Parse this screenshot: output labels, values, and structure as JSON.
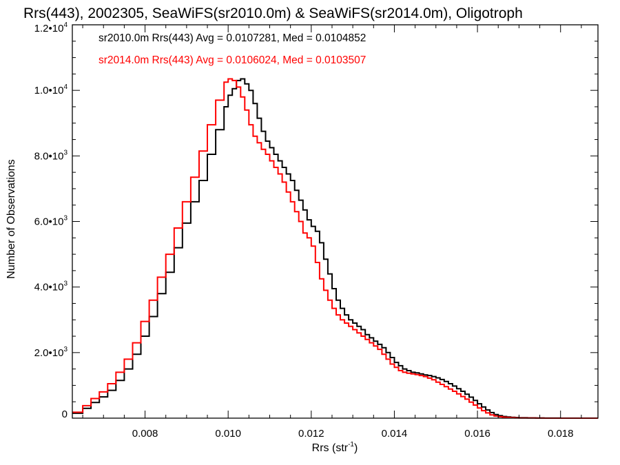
{
  "chart_data": {
    "type": "line",
    "title": "Rrs(443), 2002305, SeaWiFS(sr2010.0m) & SeaWiFS(sr2014.0m), Oligotroph",
    "xlabel_base": "Rrs (str",
    "xlabel_sup": "-1",
    "xlabel_end": ")",
    "ylabel": "Number of Observations",
    "xlim": [
      0.00625,
      0.0189
    ],
    "ylim": [
      0,
      12000
    ],
    "xticks": [
      {
        "value": 0.008,
        "label": "0.008"
      },
      {
        "value": 0.01,
        "label": "0.010"
      },
      {
        "value": 0.012,
        "label": "0.012"
      },
      {
        "value": 0.014,
        "label": "0.014"
      },
      {
        "value": 0.016,
        "label": "0.016"
      },
      {
        "value": 0.018,
        "label": "0.018"
      }
    ],
    "yticks": [
      {
        "value": 0,
        "base": "0",
        "exp": ""
      },
      {
        "value": 2000,
        "base": "2.0•10",
        "exp": "3"
      },
      {
        "value": 4000,
        "base": "4.0•10",
        "exp": "3"
      },
      {
        "value": 6000,
        "base": "6.0•10",
        "exp": "3"
      },
      {
        "value": 8000,
        "base": "8.0•10",
        "exp": "3"
      },
      {
        "value": 10000,
        "base": "1.0•10",
        "exp": "4"
      },
      {
        "value": 12000,
        "base": "1.2•10",
        "exp": "4"
      }
    ],
    "legend_placement": "top-left",
    "series": [
      {
        "name": "sr2010.0m Rrs(443) Avg = 0.0107281, Med = 0.0104852",
        "color": "#000000",
        "x": [
          0.00625,
          0.0065,
          0.0067,
          0.0069,
          0.0071,
          0.0073,
          0.0075,
          0.0077,
          0.0079,
          0.0081,
          0.0083,
          0.0085,
          0.0087,
          0.0089,
          0.0091,
          0.0093,
          0.0095,
          0.0097,
          0.0099,
          0.01,
          0.0101,
          0.0102,
          0.0103,
          0.0104,
          0.0105,
          0.0106,
          0.0107,
          0.0108,
          0.0109,
          0.011,
          0.0111,
          0.0112,
          0.0113,
          0.0114,
          0.0115,
          0.0116,
          0.0117,
          0.0118,
          0.0119,
          0.012,
          0.0121,
          0.0122,
          0.0123,
          0.0124,
          0.0125,
          0.0126,
          0.0127,
          0.0128,
          0.0129,
          0.013,
          0.0131,
          0.0132,
          0.0133,
          0.0134,
          0.0135,
          0.0136,
          0.0137,
          0.0138,
          0.0139,
          0.014,
          0.0141,
          0.0142,
          0.0143,
          0.0144,
          0.0145,
          0.0146,
          0.0147,
          0.0148,
          0.0149,
          0.015,
          0.0151,
          0.0152,
          0.0153,
          0.0154,
          0.0155,
          0.0156,
          0.0157,
          0.0158,
          0.0159,
          0.016,
          0.0161,
          0.0162,
          0.0163,
          0.0164,
          0.0165,
          0.0166,
          0.0167,
          0.0168,
          0.0169,
          0.017,
          0.0172,
          0.0174,
          0.0176,
          0.0178,
          0.018,
          0.0182,
          0.0184,
          0.0186,
          0.0189
        ],
        "y": [
          150,
          300,
          480,
          650,
          850,
          1150,
          1500,
          1950,
          2500,
          3100,
          3800,
          4450,
          5200,
          5950,
          6600,
          7250,
          8050,
          8800,
          9500,
          9850,
          10050,
          10300,
          10350,
          10200,
          10000,
          9600,
          9150,
          8750,
          8450,
          8250,
          8050,
          7850,
          7650,
          7450,
          7250,
          6950,
          6650,
          6350,
          6050,
          5850,
          5700,
          5350,
          4850,
          4400,
          3950,
          3600,
          3350,
          3150,
          3000,
          2900,
          2800,
          2700,
          2550,
          2450,
          2350,
          2250,
          2150,
          2000,
          1850,
          1700,
          1600,
          1500,
          1450,
          1400,
          1380,
          1350,
          1320,
          1300,
          1270,
          1230,
          1180,
          1120,
          1050,
          980,
          900,
          820,
          730,
          640,
          540,
          440,
          340,
          250,
          170,
          110,
          75,
          50,
          35,
          25,
          18,
          12,
          8,
          5,
          3,
          2,
          1,
          1,
          1,
          0,
          0
        ]
      },
      {
        "name": "sr2014.0m Rrs(443) Avg = 0.0106024, Med = 0.0103507",
        "color": "#ff0000",
        "x": [
          0.00625,
          0.0065,
          0.0067,
          0.0069,
          0.0071,
          0.0073,
          0.0075,
          0.0077,
          0.0079,
          0.0081,
          0.0083,
          0.0085,
          0.0087,
          0.0089,
          0.0091,
          0.0093,
          0.0095,
          0.0097,
          0.0099,
          0.01,
          0.0101,
          0.0102,
          0.0103,
          0.0104,
          0.0105,
          0.0106,
          0.0107,
          0.0108,
          0.0109,
          0.011,
          0.0111,
          0.0112,
          0.0113,
          0.0114,
          0.0115,
          0.0116,
          0.0117,
          0.0118,
          0.0119,
          0.012,
          0.0121,
          0.0122,
          0.0123,
          0.0124,
          0.0125,
          0.0126,
          0.0127,
          0.0128,
          0.0129,
          0.013,
          0.0131,
          0.0132,
          0.0133,
          0.0134,
          0.0135,
          0.0136,
          0.0137,
          0.0138,
          0.0139,
          0.014,
          0.0141,
          0.0142,
          0.0143,
          0.0144,
          0.0145,
          0.0146,
          0.0147,
          0.0148,
          0.0149,
          0.015,
          0.0151,
          0.0152,
          0.0153,
          0.0154,
          0.0155,
          0.0156,
          0.0157,
          0.0158,
          0.0159,
          0.016,
          0.0161,
          0.0162,
          0.0163,
          0.0164,
          0.0165,
          0.0166,
          0.0167,
          0.0168,
          0.0169,
          0.017,
          0.0172,
          0.0174,
          0.0176,
          0.0178,
          0.018,
          0.0182,
          0.0184,
          0.0186,
          0.0189
        ],
        "y": [
          180,
          380,
          600,
          800,
          1050,
          1400,
          1800,
          2300,
          2950,
          3600,
          4300,
          5000,
          5800,
          6600,
          7350,
          8150,
          8950,
          9700,
          10250,
          10350,
          10300,
          10100,
          9800,
          9400,
          8950,
          8600,
          8400,
          8200,
          8050,
          7850,
          7650,
          7450,
          7200,
          6900,
          6600,
          6300,
          6000,
          5650,
          5500,
          5250,
          4750,
          4250,
          3900,
          3600,
          3350,
          3150,
          3000,
          2900,
          2800,
          2700,
          2600,
          2500,
          2400,
          2300,
          2200,
          2100,
          1950,
          1800,
          1650,
          1550,
          1450,
          1400,
          1370,
          1350,
          1330,
          1300,
          1270,
          1220,
          1170,
          1100,
          1030,
          960,
          890,
          820,
          740,
          660,
          580,
          490,
          400,
          310,
          230,
          160,
          100,
          65,
          45,
          30,
          20,
          14,
          9,
          6,
          4,
          2,
          1,
          1,
          1,
          0,
          0,
          0,
          0
        ]
      }
    ]
  }
}
